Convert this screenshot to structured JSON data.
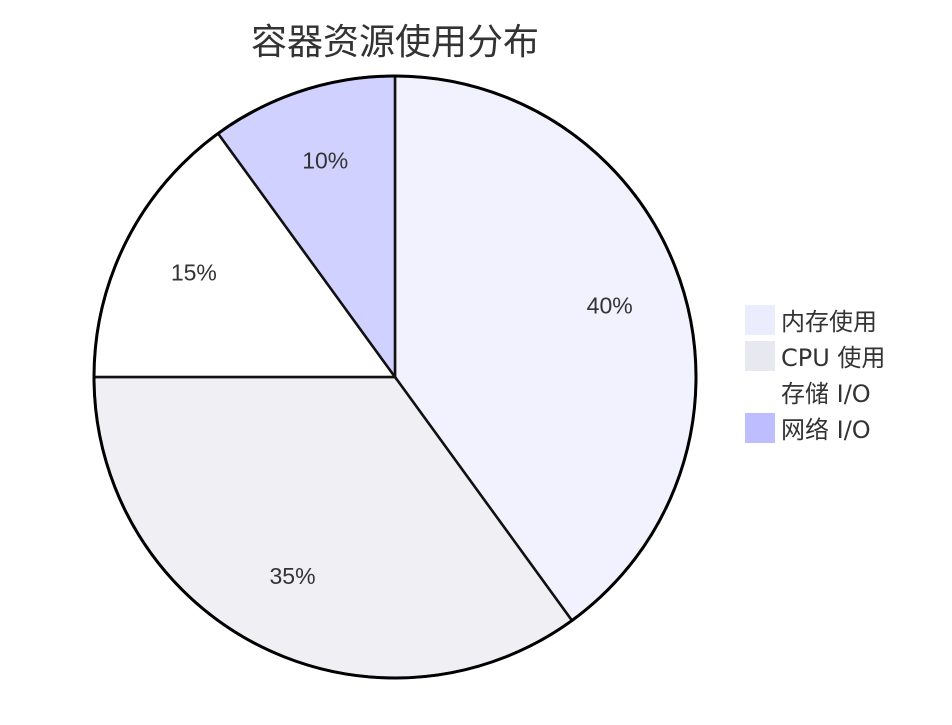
{
  "chart_data": {
    "type": "pie",
    "title": "容器资源使用分布",
    "categories": [
      "内存使用",
      "CPU 使用",
      "存储 I/O",
      "网络 I/O"
    ],
    "values": [
      40,
      35,
      15,
      10
    ],
    "labels": [
      "40%",
      "35%",
      "15%",
      "10%"
    ],
    "colors": [
      "#ECECFF",
      "#E8E8F0",
      "#FFFFFF",
      "#BDBDFF"
    ],
    "legend_position": "right",
    "start_angle": "top, clockwise"
  }
}
